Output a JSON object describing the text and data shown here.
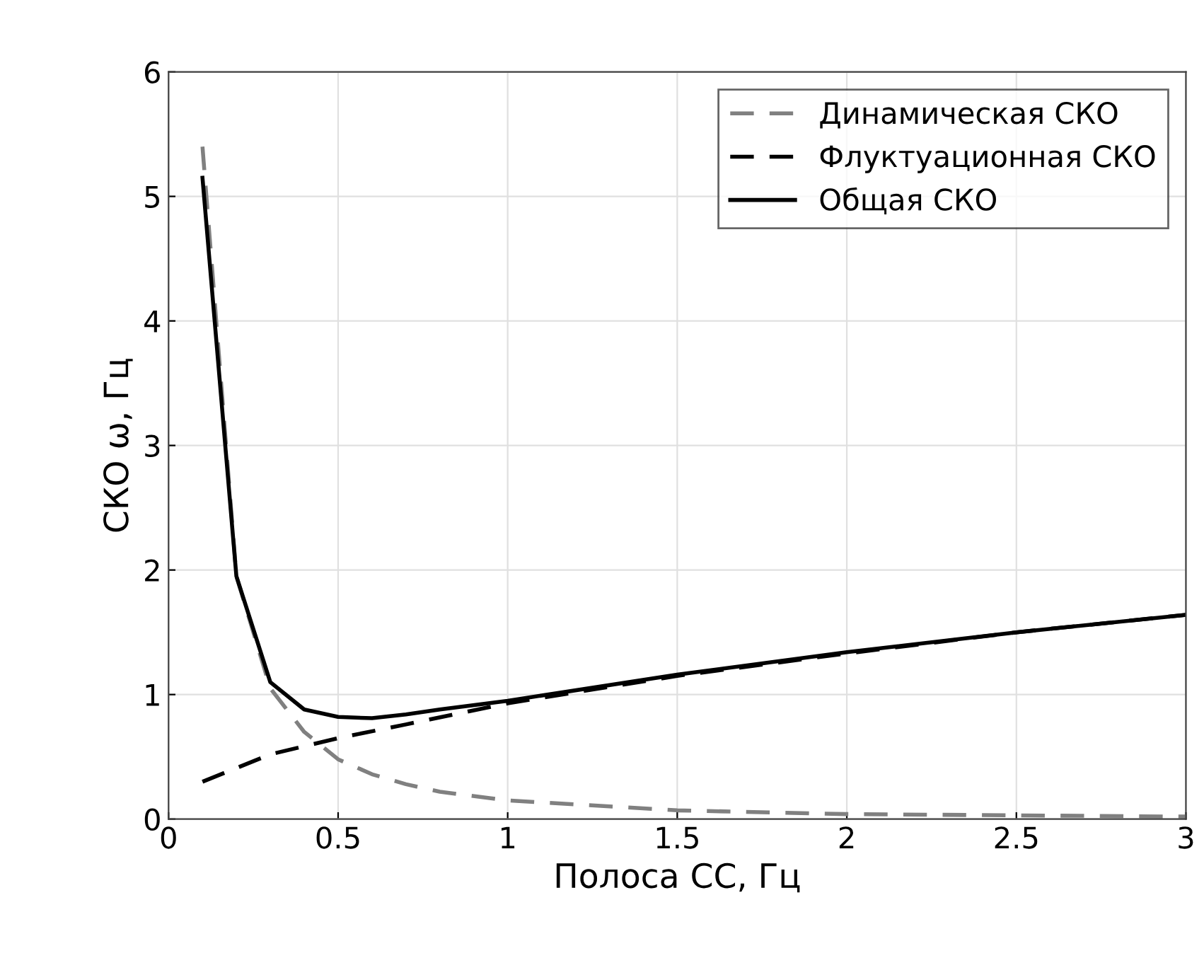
{
  "chart_data": {
    "type": "line",
    "xlabel": "Полоса СС, Гц",
    "ylabel": "СКО ω, Гц",
    "xlim": [
      0,
      3
    ],
    "xticks": [
      0,
      0.5,
      1,
      1.5,
      2,
      2.5,
      3
    ],
    "ylim": [
      0,
      6
    ],
    "yticks": [
      0,
      1,
      2,
      3,
      4,
      5,
      6
    ],
    "grid": true,
    "legend": "top right",
    "marker": "none",
    "series": [
      {
        "name": "Динамическая СКО",
        "color": "#808080",
        "line_style": "dashed",
        "x": [
          0.1,
          0.2,
          0.3,
          0.4,
          0.5,
          0.6,
          0.7,
          0.8,
          1.0,
          1.5,
          2.0,
          2.5,
          3.0
        ],
        "values": [
          5.4,
          1.95,
          1.05,
          0.7,
          0.48,
          0.36,
          0.28,
          0.22,
          0.15,
          0.07,
          0.04,
          0.03,
          0.02
        ]
      },
      {
        "name": "Флуктуационная СКО",
        "color": "#000000",
        "line_style": "dashed",
        "x": [
          0.1,
          0.3,
          0.5,
          0.7,
          1.0,
          1.5,
          2.0,
          2.5,
          3.0
        ],
        "values": [
          0.3,
          0.52,
          0.65,
          0.76,
          0.93,
          1.15,
          1.33,
          1.5,
          1.64
        ]
      },
      {
        "name": "Общая СКО",
        "color": "#000000",
        "line_style": "solid",
        "x": [
          0.1,
          0.2,
          0.3,
          0.4,
          0.5,
          0.6,
          0.7,
          0.8,
          1.0,
          1.5,
          2.0,
          2.5,
          3.0
        ],
        "values": [
          5.15,
          1.95,
          1.1,
          0.88,
          0.82,
          0.81,
          0.84,
          0.88,
          0.95,
          1.16,
          1.34,
          1.5,
          1.64
        ]
      }
    ]
  }
}
